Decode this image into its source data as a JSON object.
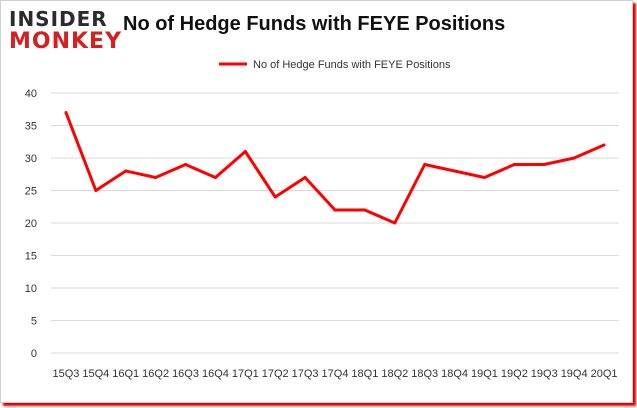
{
  "logo": {
    "line1": "INSIDER",
    "line2": "MONKEY"
  },
  "chart_data": {
    "type": "line",
    "title": "No of Hedge Funds with FEYE Positions",
    "xlabel": "",
    "ylabel": "",
    "categories": [
      "15Q3",
      "15Q4",
      "16Q1",
      "16Q2",
      "16Q3",
      "16Q4",
      "17Q1",
      "17Q2",
      "17Q3",
      "17Q4",
      "18Q1",
      "18Q2",
      "18Q3",
      "18Q4",
      "19Q1",
      "19Q2",
      "19Q3",
      "19Q4",
      "20Q1"
    ],
    "series": [
      {
        "name": "No of Hedge Funds with FEYE  Positions",
        "values": [
          37,
          25,
          28,
          27,
          29,
          27,
          31,
          24,
          27,
          22,
          22,
          20,
          29,
          28,
          27,
          29,
          29,
          30,
          32
        ],
        "color": "#ff0000"
      }
    ],
    "ylim": [
      0,
      40
    ],
    "yticks": [
      0,
      5,
      10,
      15,
      20,
      25,
      30,
      35,
      40
    ],
    "grid": true,
    "legend_position": "top-center",
    "colors": {
      "line": "#ff0000",
      "grid": "#d9d9d9",
      "frame_shadow": "#d90000"
    }
  }
}
